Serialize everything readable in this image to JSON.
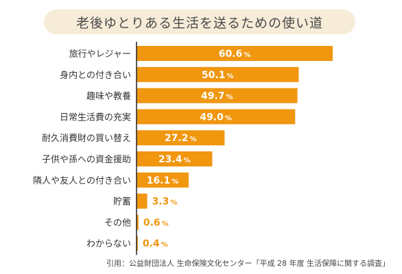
{
  "title": "老後ゆとりある生活を送るための使い道",
  "source": "引用：公益財団法人 生命保険文化センター「平成 28 年度 生活保障に関する調査」",
  "colors": {
    "bar": "#f0960f",
    "label_inside": "#ffffff",
    "label_outside": "#f0960f",
    "axis": "#222222"
  },
  "chart_data": {
    "type": "bar",
    "orientation": "horizontal",
    "title": "老後ゆとりある生活を送るための使い道",
    "unit": "%",
    "categories": [
      "旅行やレジャー",
      "身内との付き合い",
      "趣味や教養",
      "日常生活費の充実",
      "耐久消費財の買い替え",
      "子供や孫への資金援助",
      "隣人や友人との付き合い",
      "貯蓄",
      "その他",
      "わからない"
    ],
    "values": [
      60.6,
      50.1,
      49.7,
      49.0,
      27.2,
      23.4,
      16.1,
      3.3,
      0.6,
      0.4
    ],
    "value_labels": [
      "60.6",
      "50.1",
      "49.7",
      "49.0",
      "27.2",
      "23.4",
      "16.1",
      "3.3",
      "0.6",
      "0.4"
    ],
    "xlim": [
      0,
      60.6
    ],
    "grid": false,
    "legend": "none"
  }
}
